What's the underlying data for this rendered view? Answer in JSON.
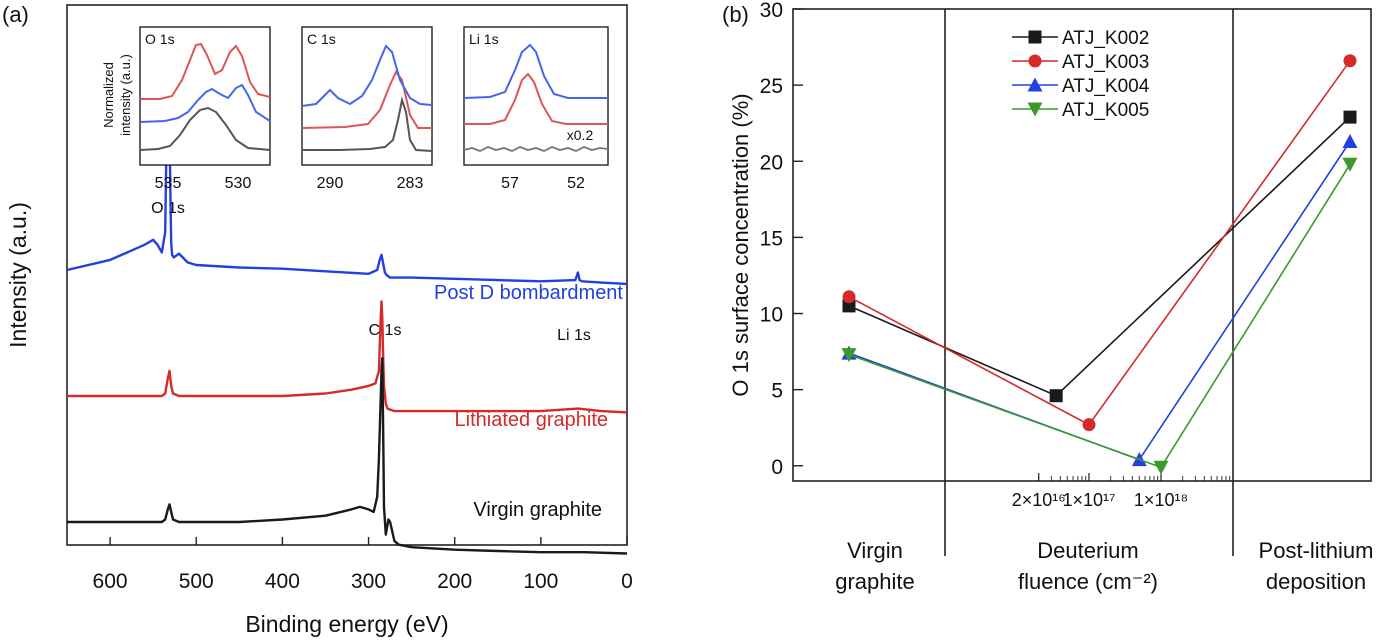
{
  "colors": {
    "black": "#1a1a1a",
    "red": "#d42a2a",
    "blue": "#2240e0",
    "green": "#3c9a2a",
    "gray": "#606060"
  },
  "panel_a": {
    "label": "(a)",
    "xlabel": "Binding energy (eV)",
    "ylabel": "Intensity (a.u.)",
    "x_ticks": [
      "600",
      "500",
      "400",
      "300",
      "200",
      "100",
      "0"
    ],
    "peak_labels": {
      "o1s": "O 1s",
      "c1s": "C 1s",
      "li1s": "Li 1s"
    },
    "series_labels": {
      "post": "Post D bombardment",
      "lith": "Lithiated graphite",
      "virgin": "Virgin graphite"
    },
    "inset": {
      "ylabel_line1": "Normalized",
      "ylabel_line2": "intensity (a.u.)",
      "o1s": {
        "title": "O 1s",
        "ticks": [
          "535",
          "530"
        ]
      },
      "c1s": {
        "title": "C 1s",
        "ticks": [
          "290",
          "283"
        ]
      },
      "li1s": {
        "title": "Li 1s",
        "ticks": [
          "57",
          "52"
        ],
        "note": "x0.2"
      }
    }
  },
  "chart_data": [
    {
      "type": "line",
      "title": "",
      "xlabel": "Binding energy (eV)",
      "ylabel": "Intensity (a.u.)",
      "xlim": [
        650,
        0
      ],
      "series": [
        {
          "name": "Post D bombardment",
          "color": "blue",
          "offset": 2.0,
          "x": [
            650,
            600,
            580,
            560,
            550,
            545,
            540,
            536,
            534,
            532,
            531,
            530,
            529,
            528,
            526,
            520,
            510,
            500,
            450,
            400,
            350,
            300,
            290,
            287,
            285,
            283,
            281,
            279,
            275,
            250,
            200,
            150,
            100,
            60,
            57,
            55,
            52,
            30,
            0
          ],
          "y": [
            0.0,
            0.08,
            0.14,
            0.2,
            0.24,
            0.2,
            0.14,
            0.3,
            1.25,
            1.15,
            1.2,
            0.6,
            0.22,
            0.12,
            0.1,
            0.13,
            0.06,
            0.04,
            0.02,
            0.01,
            -0.01,
            -0.03,
            0.0,
            0.08,
            0.12,
            0.05,
            -0.02,
            -0.04,
            -0.06,
            -0.06,
            -0.07,
            -0.08,
            -0.09,
            -0.08,
            -0.02,
            -0.08,
            -0.09,
            -0.1,
            -0.11
          ]
        },
        {
          "name": "Lithiated graphite",
          "color": "red",
          "offset": 1.0,
          "x": [
            650,
            600,
            550,
            540,
            536,
            533,
            531,
            529,
            527,
            520,
            500,
            450,
            400,
            350,
            320,
            300,
            292,
            288,
            286,
            285,
            284,
            283,
            282,
            280,
            278,
            270,
            250,
            200,
            150,
            100,
            57,
            30,
            0
          ],
          "y": [
            0.0,
            0.0,
            0.0,
            0.0,
            0.02,
            0.14,
            0.2,
            0.08,
            0.02,
            0.0,
            0.0,
            0.0,
            0.0,
            0.02,
            0.05,
            0.08,
            0.1,
            0.2,
            0.6,
            0.75,
            0.62,
            0.3,
            0.08,
            -0.06,
            -0.1,
            -0.12,
            -0.12,
            -0.12,
            -0.12,
            -0.12,
            -0.1,
            -0.12,
            -0.13
          ]
        },
        {
          "name": "Virgin graphite",
          "color": "black",
          "offset": 0.0,
          "x": [
            650,
            600,
            550,
            540,
            536,
            533,
            531,
            529,
            527,
            520,
            500,
            450,
            400,
            350,
            320,
            310,
            300,
            294,
            290,
            288,
            286,
            285,
            284,
            283,
            282,
            280,
            277,
            275,
            270,
            265,
            250,
            200,
            150,
            100,
            50,
            0
          ],
          "y": [
            0.0,
            0.0,
            0.0,
            0.0,
            0.02,
            0.1,
            0.14,
            0.08,
            0.02,
            0.0,
            0.0,
            0.0,
            0.02,
            0.05,
            0.1,
            0.12,
            0.1,
            0.08,
            0.2,
            0.5,
            0.95,
            1.2,
            1.3,
            0.7,
            0.12,
            -0.1,
            0.02,
            0.0,
            -0.15,
            -0.18,
            -0.2,
            -0.22,
            -0.23,
            -0.24,
            -0.24,
            -0.25
          ]
        }
      ]
    },
    {
      "type": "line",
      "title": "",
      "xlabel": "",
      "ylabel": "O 1s surface concentration (%)",
      "ylim": [
        -1,
        30
      ],
      "y_ticks": [
        0,
        5,
        10,
        15,
        20,
        25,
        30
      ],
      "x_regions": [
        {
          "label_line1": "Virgin",
          "label_line2": "graphite"
        },
        {
          "label_line1": "Deuterium",
          "label_line2": "fluence (cm⁻²)"
        },
        {
          "label_line1": "Post-lithium",
          "label_line2": "deposition"
        }
      ],
      "x_ticks": [
        "2×10¹⁶",
        "1×10¹⁷",
        "1×10¹⁸"
      ],
      "legend_position": "top",
      "series": [
        {
          "name": "ATJ_K002",
          "color": "black",
          "marker": "square",
          "points": [
            {
              "x": "Virgin graphite",
              "y": 10.5
            },
            {
              "x": "3.5e16",
              "y": 4.6
            },
            {
              "x": "Post-lithium deposition",
              "y": 22.9
            }
          ]
        },
        {
          "name": "ATJ_K003",
          "color": "red",
          "marker": "circle",
          "points": [
            {
              "x": "Virgin graphite",
              "y": 11.1
            },
            {
              "x": "1e17",
              "y": 2.7
            },
            {
              "x": "Post-lithium deposition",
              "y": 26.6
            }
          ]
        },
        {
          "name": "ATJ_K004",
          "color": "blue",
          "marker": "triangle-up",
          "points": [
            {
              "x": "Virgin graphite",
              "y": 7.4
            },
            {
              "x": "5e17",
              "y": 0.4
            },
            {
              "x": "Post-lithium deposition",
              "y": 21.3
            }
          ]
        },
        {
          "name": "ATJ_K005",
          "color": "green",
          "marker": "triangle-down",
          "points": [
            {
              "x": "Virgin graphite",
              "y": 7.3
            },
            {
              "x": "1e18",
              "y": -0.1
            },
            {
              "x": "Post-lithium deposition",
              "y": 19.8
            }
          ]
        }
      ]
    }
  ]
}
